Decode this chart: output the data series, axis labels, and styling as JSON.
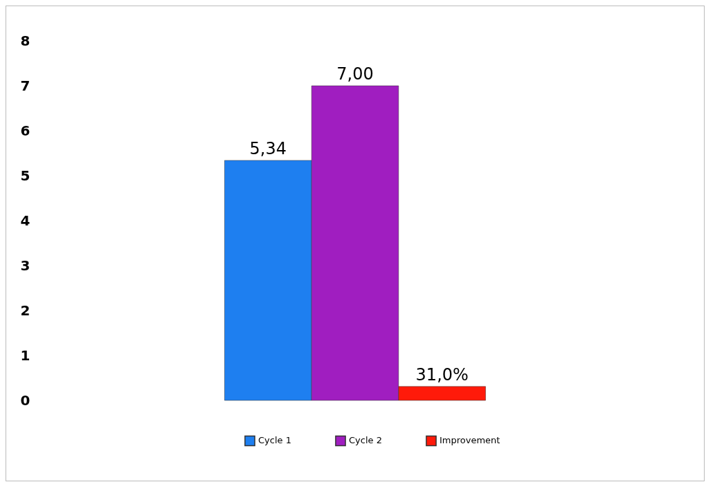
{
  "chart_data": {
    "type": "bar",
    "categories": [
      null
    ],
    "series": [
      {
        "name": "Cycle 1",
        "color": "#1e7ff0",
        "values": [
          5.34
        ],
        "value_labels": [
          "5,34"
        ]
      },
      {
        "name": "Cycle 2",
        "color": "#a01ec0",
        "values": [
          7.0
        ],
        "value_labels": [
          "7,00"
        ]
      },
      {
        "name": "Improvement",
        "color": "#ff1a0a",
        "values": [
          0.31
        ],
        "value_labels": [
          "31,0%"
        ]
      }
    ],
    "ylim": [
      0,
      8
    ],
    "yticks": [
      0,
      1,
      2,
      3,
      4,
      5,
      6,
      7,
      8
    ],
    "grid": false,
    "legend": "bottom"
  }
}
